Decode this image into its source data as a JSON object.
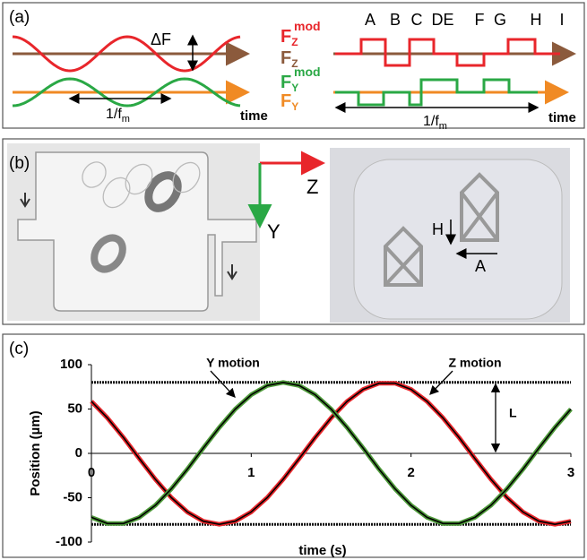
{
  "panel_a": {
    "label": "(a)",
    "delta_f": "ΔF",
    "period_left": {
      "base": "1/f",
      "sub": "m"
    },
    "period_right": {
      "base": "1/f",
      "sub": "m"
    },
    "time_left": "time",
    "time_right": "time",
    "forces": [
      {
        "base": "F",
        "sub": "Z",
        "sup": "mod",
        "color": "#e8262b"
      },
      {
        "base": "F",
        "sub": "Z",
        "color": "#8b5a3c"
      },
      {
        "base": "F",
        "sub": "Y",
        "sup": "mod",
        "color": "#2aa845"
      },
      {
        "base": "F",
        "sub": "Y",
        "color": "#f08a24"
      }
    ],
    "letters": [
      "A",
      "B",
      "C",
      "DE",
      "F",
      "G",
      "H",
      "I"
    ]
  },
  "panel_b": {
    "label": "(b)",
    "axis_z": "Z",
    "axis_y": "Y",
    "arrow_h": "H",
    "arrow_a": "A"
  },
  "panel_c": {
    "label": "(c)"
  },
  "chart_data": {
    "type": "line",
    "x_label": "time (s)",
    "y_label": "Position (µm)",
    "xlim": [
      0,
      3
    ],
    "ylim": [
      -100,
      100
    ],
    "xticks": [
      0,
      1,
      2,
      3
    ],
    "yticks": [
      100,
      50,
      0,
      -50,
      -100
    ],
    "reference_lines": [
      80,
      -80
    ],
    "annotations": [
      "Y motion",
      "Z motion",
      "L"
    ],
    "x": [
      0,
      0.1,
      0.2,
      0.3,
      0.4,
      0.5,
      0.6,
      0.7,
      0.8,
      0.9,
      1.0,
      1.1,
      1.2,
      1.3,
      1.4,
      1.5,
      1.6,
      1.7,
      1.8,
      1.9,
      2.0,
      2.1,
      2.2,
      2.3,
      2.4,
      2.5,
      2.6,
      2.7,
      2.8,
      2.9,
      3.0
    ],
    "series": [
      {
        "name": "Z motion",
        "color": "#e8262b",
        "values": [
          58.6,
          40,
          17.9,
          -6,
          -29.2,
          -49.9,
          -66.1,
          -76.5,
          -80,
          -76.5,
          -66.1,
          -49.9,
          -29.2,
          -6,
          17.9,
          40,
          58.6,
          72.1,
          79.1,
          79.1,
          72.1,
          58.6,
          40,
          17.9,
          -6,
          -29.2,
          -49.9,
          -66.1,
          -76.5,
          -80,
          -76.5
        ]
      },
      {
        "name": "Y motion",
        "color": "#4e9a3a",
        "values": [
          -72.1,
          -79.1,
          -79.1,
          -72.1,
          -58.6,
          -40,
          -17.9,
          6,
          29.2,
          49.9,
          66.1,
          76.5,
          80,
          76.5,
          66.1,
          49.9,
          29.2,
          6,
          -17.9,
          -40,
          -58.6,
          -72.1,
          -79.1,
          -79.1,
          -72.1,
          -58.6,
          -40,
          -17.9,
          6,
          29.2,
          49.9
        ]
      }
    ]
  }
}
